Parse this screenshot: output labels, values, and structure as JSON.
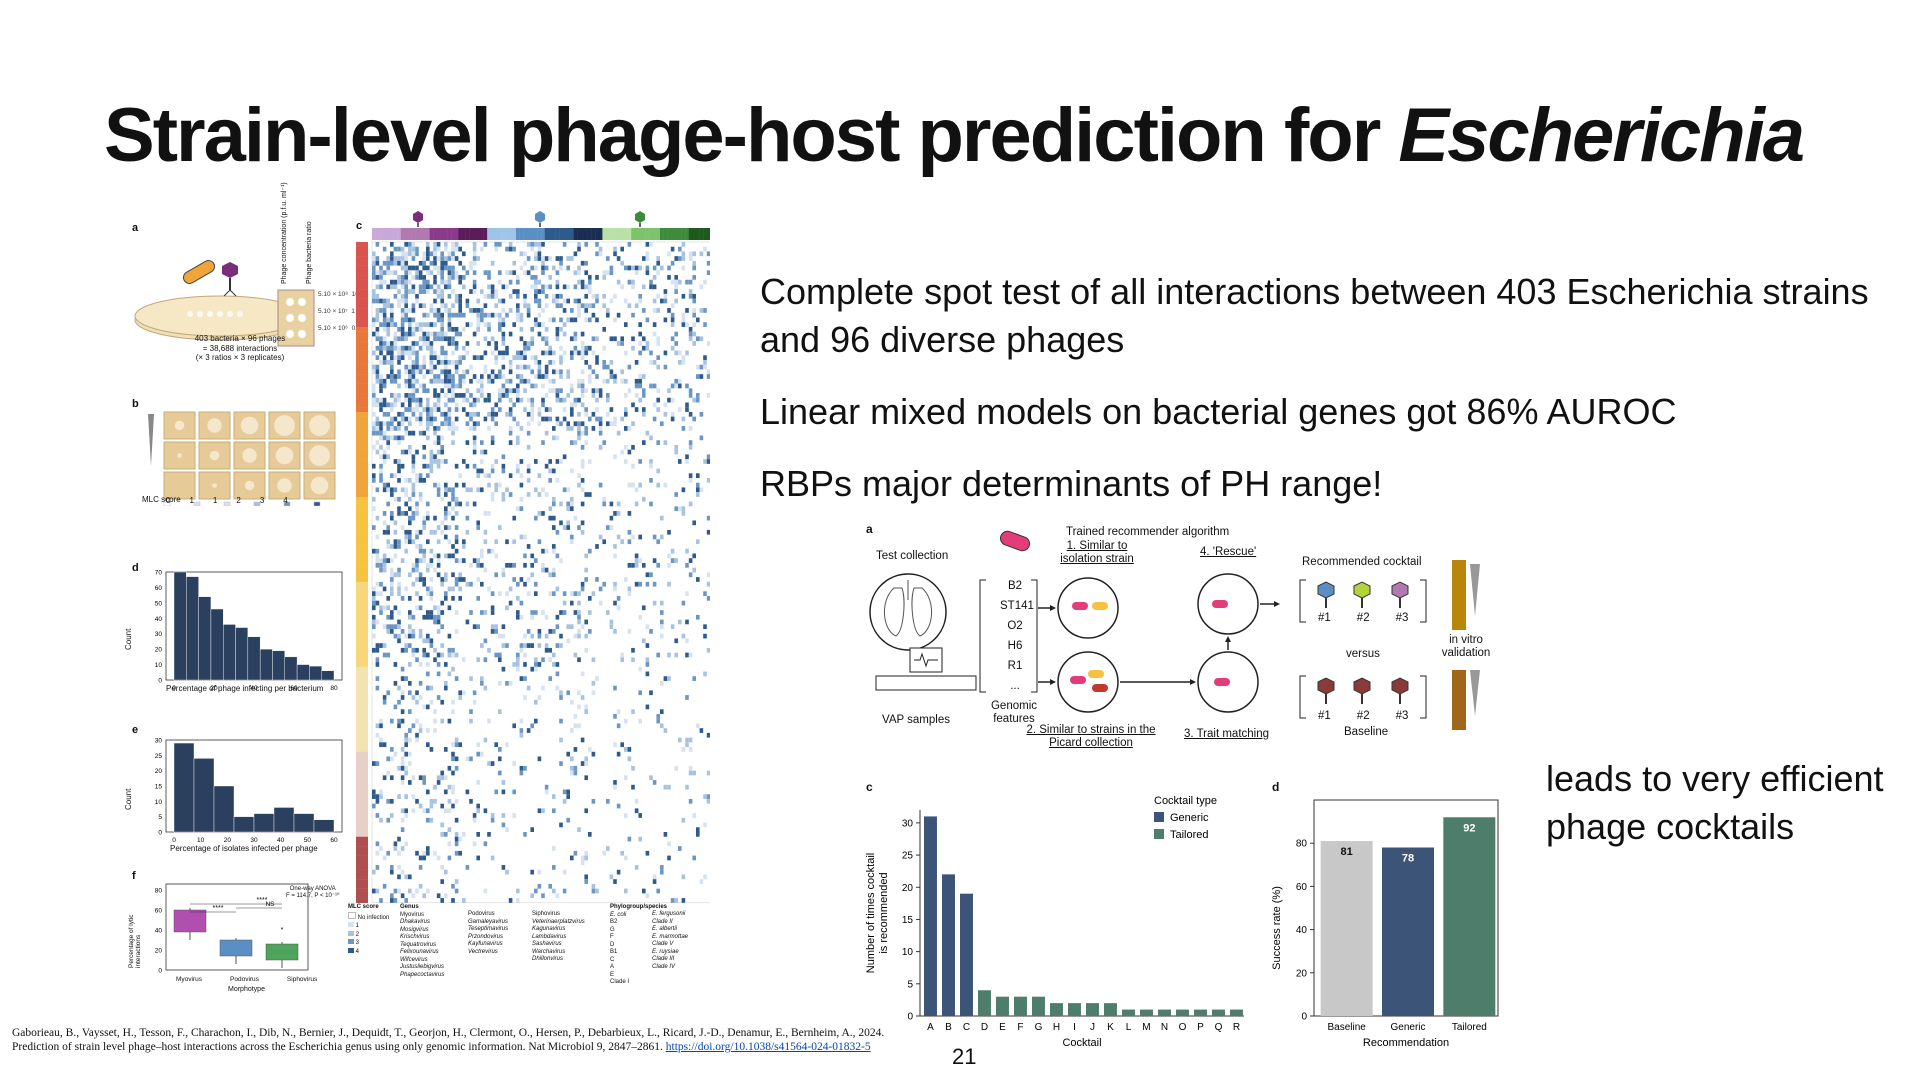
{
  "slide": {
    "title_plain": "Strain-level phage-host prediction for ",
    "title_italic": "Escherichia",
    "bullets": [
      "Complete spot test of all interactions between 403 Escherichia strains and 96 diverse phages",
      "Linear mixed models on bacterial genes got 86% AUROC",
      "RBPs major determinants of PH range!"
    ],
    "side_note": "leads to very efficient phage cocktails",
    "page_number": "21",
    "citation": "Gaborieau, B., Vaysset, H., Tesson, F., Charachon, I., Dib, N., Bernier, J., Dequidt, T., Georjon, H., Clermont, O., Hersen, P., Debarbieux, L., Ricard, J.-D., Denamur, E., Bernheim, A., 2024. Prediction of strain level phage–host interactions across the Escherichia genus using only genomic information. Nat Microbiol 9, 2847–2861. ",
    "citation_link": "https://doi.org/10.1038/s41564-024-01832-5"
  },
  "left_figure": {
    "labels": [
      "a",
      "b",
      "c",
      "d",
      "e",
      "f"
    ],
    "panel_a": {
      "caption_lines": [
        "403 bacteria × 96 phages",
        "= 38,688 interactions",
        "(× 3 ratios × 3 replicates)"
      ],
      "col_head_1": "Phage concentration (p.f.u. ml⁻¹)",
      "col_head_2": "Phage bacteria ratio",
      "rows": [
        [
          "5.10 × 10⁸",
          "10"
        ],
        [
          "5.10 × 10⁷",
          "1"
        ],
        [
          "5.10 × 10⁶",
          "0.1"
        ]
      ]
    },
    "panel_b": {
      "mlc_label": "MLC score",
      "scores": [
        "0",
        "1",
        "1",
        "2",
        "3",
        "4"
      ]
    },
    "panel_d": {
      "ylabel": "Count",
      "xlabel": "Percentage of phage infecting per bacterium",
      "yticks": [
        "70",
        "60",
        "50",
        "40",
        "30",
        "20",
        "10",
        "0"
      ],
      "xticks": [
        "0",
        "20",
        "40",
        "60",
        "80"
      ],
      "values": [
        70,
        67,
        54,
        46,
        36,
        34,
        28,
        20,
        19,
        15,
        10,
        9,
        6
      ]
    },
    "panel_e": {
      "ylabel": "Count",
      "xlabel": "Percentage of isolates infected per phage",
      "yticks": [
        "30",
        "25",
        "20",
        "15",
        "10",
        "5",
        "0"
      ],
      "xticks": [
        "0",
        "10",
        "20",
        "30",
        "40",
        "50",
        "60"
      ],
      "values": [
        29,
        24,
        15,
        5,
        6,
        8,
        6,
        4
      ]
    },
    "panel_f": {
      "ylabel": "Percentage of lytic interactions",
      "xlabel": "Morphotype",
      "yticks": [
        "80",
        "60",
        "40",
        "20",
        "0"
      ],
      "groups": [
        "Myovirus",
        "Podovirus",
        "Siphovirus"
      ],
      "anova": "One-way ANOVA",
      "stat": "F = 114.7, P < 10⁻¹⁰",
      "sig": [
        "****",
        "****",
        "NS",
        "*"
      ],
      "colors": [
        "#b04fb0",
        "#5b8fc4",
        "#4ea45a"
      ]
    },
    "panel_c_legend": {
      "mlc_title": "MLC score",
      "mlc_items": [
        "No infection",
        "1",
        "2",
        "3",
        "4"
      ],
      "genus_title": "Genus",
      "myovirus": [
        "Myovirus",
        "Dhakavirus",
        "Mosigvirus",
        "Krischvirus",
        "Tequatrovirus",
        "Felixounavirus",
        "Wifcevirus",
        "Justusliebigvirus",
        "Phapecoctavirus"
      ],
      "podovirus": [
        "Podovirus",
        "Gamaleyavirus",
        "Teseptimavirus",
        "Przondovirus",
        "Kayfunavirus",
        "Vectrevirus"
      ],
      "siphovirus": [
        "Siphovirus",
        "Veterinaerplatzvirus",
        "Kagunavirus",
        "Lambdavirus",
        "Sashavirus",
        "Warchavirus",
        "Dhillonvirus"
      ],
      "phylo_title": "Phylogroup/species",
      "phylo_items": [
        "E. coli",
        "B2",
        "G",
        "F",
        "D",
        "B1",
        "C",
        "A",
        "E",
        "Clade I"
      ],
      "species": [
        "E. fergusonii",
        "Clade II",
        "E. albertii",
        "E. marmottae",
        "Clade V",
        "E. ruysiae",
        "Clade III",
        "Clade IV"
      ]
    }
  },
  "right_figure": {
    "panel_a": {
      "label": "a",
      "test_collection": "Test collection",
      "vap_samples": "VAP samples",
      "features": [
        "B2",
        "ST141",
        "O2",
        "H6",
        "R1",
        "..."
      ],
      "genomic_features": "Genomic features",
      "algo_title": "Trained recommender algorithm",
      "step1": "1. Similar to isolation strain",
      "step2": "2. Similar to strains in the Picard collection",
      "step3": "3. Trait matching",
      "step4": "4. 'Rescue'",
      "recommended": "Recommended cocktail",
      "versus": "versus",
      "baseline": "Baseline",
      "phage_ids": [
        "#1",
        "#2",
        "#3"
      ],
      "in_vitro": "in vitro validation"
    },
    "panel_c": {
      "label": "c",
      "legend_title": "Cocktail type",
      "legend_items": [
        "Generic",
        "Tailored"
      ],
      "colors": {
        "Generic": "#3b5478",
        "Tailored": "#4e7d6c"
      }
    },
    "panel_d": {
      "label": "d"
    }
  },
  "chart_data": [
    {
      "type": "bar",
      "title": "",
      "xlabel": "Cocktail",
      "ylabel": "Number of times cocktail is recommended",
      "categories": [
        "A",
        "B",
        "C",
        "D",
        "E",
        "F",
        "G",
        "H",
        "I",
        "J",
        "K",
        "L",
        "M",
        "N",
        "O",
        "P",
        "Q",
        "R"
      ],
      "series": [
        {
          "name": "Generic",
          "values": [
            31,
            22,
            19,
            0,
            0,
            0,
            0,
            0,
            0,
            0,
            0,
            0,
            0,
            0,
            0,
            0,
            0,
            0
          ]
        },
        {
          "name": "Tailored",
          "values": [
            0,
            0,
            0,
            4,
            3,
            3,
            3,
            2,
            2,
            2,
            2,
            1,
            1,
            1,
            1,
            1,
            1,
            1
          ]
        }
      ],
      "ylim": [
        0,
        32
      ],
      "yticks": [
        0,
        5,
        10,
        15,
        20,
        25,
        30
      ],
      "legend": "top-right",
      "grid": false
    },
    {
      "type": "bar",
      "title": "",
      "xlabel": "Recommendation",
      "ylabel": "Success rate (%)",
      "categories": [
        "Baseline",
        "Generic",
        "Tailored"
      ],
      "values": [
        81,
        78,
        92
      ],
      "data_labels": [
        "81",
        "78",
        "92"
      ],
      "colors": [
        "#c8c8c8",
        "#3b5478",
        "#4e7d6c"
      ],
      "ylim": [
        0,
        100
      ],
      "yticks": [
        0,
        20,
        40,
        60,
        80
      ],
      "grid": false
    }
  ]
}
